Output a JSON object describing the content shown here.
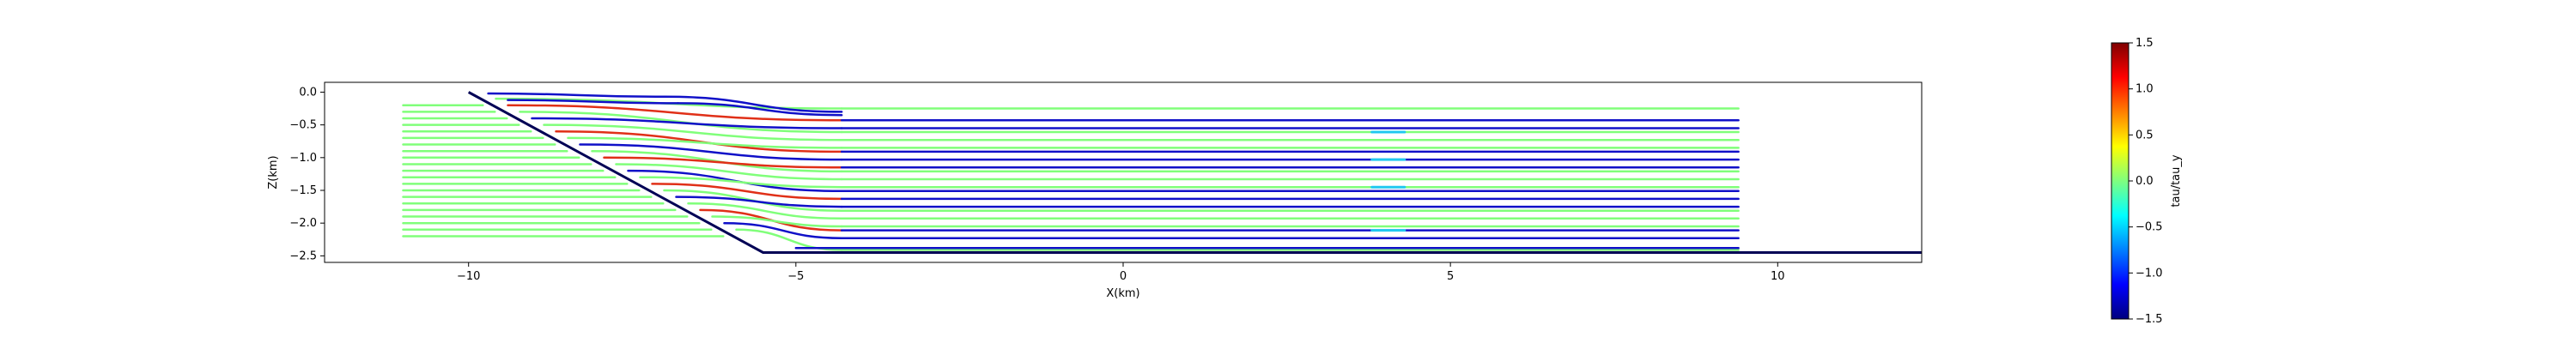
{
  "chart_data": {
    "type": "line",
    "title": "",
    "xlabel": "X(km)",
    "ylabel": "Z(km)",
    "xlim": [
      -12.2,
      12.2
    ],
    "ylim": [
      -2.6,
      0.15
    ],
    "xticks": [
      "−10",
      "−5",
      "0",
      "5",
      "10"
    ],
    "xtick_values": [
      -10,
      -5,
      0,
      5,
      10
    ],
    "yticks": [
      "0.0",
      "−0.5",
      "−1.0",
      "−1.5",
      "−2.0",
      "−2.5"
    ],
    "ytick_values": [
      0.0,
      -0.5,
      -1.0,
      -1.5,
      -2.0,
      -2.5
    ],
    "grid": false,
    "fault": {
      "x": [
        -10.0,
        -5.5,
        12.2
      ],
      "z": [
        0.0,
        -2.45,
        -2.45
      ],
      "color": "#000055"
    },
    "streamlines": {
      "x_start": -11.0,
      "x_end": 9.4,
      "z_levels": [
        -0.2,
        -0.3,
        -0.4,
        -0.5,
        -0.6,
        -0.7,
        -0.8,
        -0.9,
        -1.0,
        -1.1,
        -1.2,
        -1.3,
        -1.4,
        -1.5,
        -1.6,
        -1.7,
        -1.8,
        -1.9,
        -2.0,
        -2.1,
        -2.2
      ],
      "colors": {
        "elastic": "#80ff7a",
        "positive": "#e03018",
        "negative": "#1010c8",
        "near_zero": "#20c8f0"
      }
    },
    "colorbar": {
      "label": "tau/tau_y",
      "min": -1.5,
      "max": 1.5,
      "ticks": [
        "1.5",
        "1.0",
        "0.5",
        "0.0",
        "−0.5",
        "−1.0",
        "−1.5"
      ],
      "tick_values": [
        1.5,
        1.0,
        0.5,
        0.0,
        -0.5,
        -1.0,
        -1.5
      ],
      "colormap": "jet"
    }
  }
}
